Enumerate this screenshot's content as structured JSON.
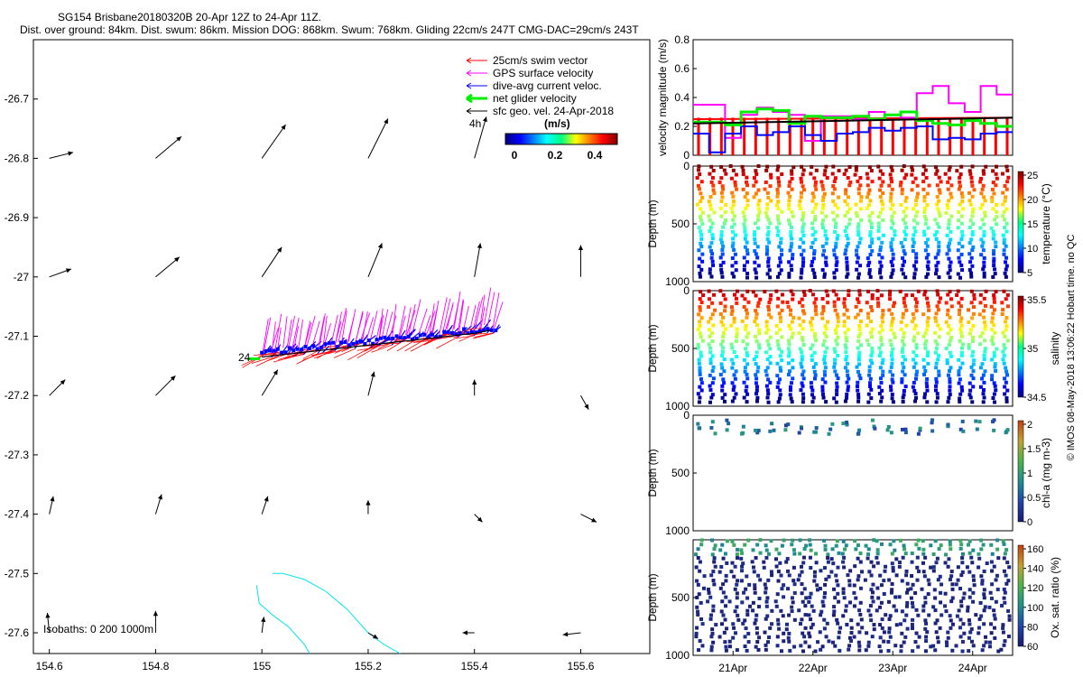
{
  "header": {
    "title": "SG154 Brisbane20180320B 20-Apr 12Z to 24-Apr 11Z.",
    "subtitle": "Dist. over ground: 84km. Dist. swum: 86km. Mission DOG: 868km. Swum: 768km. Gliding 22cm/s 247T CMG-DAC=29cm/s 243T"
  },
  "colors": {
    "swim": "#ff0000",
    "gps": "#ff00ff",
    "dac": "#0000ff",
    "net": "#00ee00",
    "geo": "#000000",
    "isobath": "#00e5ee"
  },
  "chart_data": [
    {
      "type": "vector-map",
      "title": "SG154 Brisbane20180320B 20-Apr 12Z to 24-Apr 11Z.",
      "xlim": [
        154.57,
        155.73
      ],
      "ylim": [
        -27.635,
        -26.6
      ],
      "xticks": [
        154.6,
        154.8,
        155,
        155.2,
        155.4,
        155.6
      ],
      "xtick_labels": [
        "154.6",
        "154.8",
        "155",
        "155.2",
        "155.4",
        "155.6"
      ],
      "yticks": [
        -26.7,
        -26.8,
        -26.9,
        -27,
        -27.1,
        -27.2,
        -27.3,
        -27.4,
        -27.5,
        -27.6
      ],
      "ytick_labels": [
        "-26.7",
        "-26.8",
        "-26.9",
        "-27",
        "-27.1",
        "-27.2",
        "-27.3",
        "-27.4",
        "-27.5",
        "-27.6"
      ],
      "legend": {
        "placement": "top-right",
        "items": [
          "25cm/s swim vector",
          "GPS surface velocity",
          "dive-avg current veloc.",
          "net glider velocity",
          "sfc geo. vel. 24-Apr-2018"
        ]
      },
      "colorbar": {
        "label": "(m/s)",
        "ticks": [
          "0",
          "0.2",
          "0.4"
        ],
        "range": [
          0,
          0.5
        ]
      },
      "scale_label": "4h",
      "start_label": "24",
      "isobath_label": "Isobaths: 0   200   1000m",
      "geo_vectors": [
        {
          "lon": 154.6,
          "lat": -26.8,
          "u": 0.12,
          "v": 0.03
        },
        {
          "lon": 154.8,
          "lat": -26.8,
          "u": 0.13,
          "v": 0.11
        },
        {
          "lon": 155.0,
          "lat": -26.8,
          "u": 0.12,
          "v": 0.17
        },
        {
          "lon": 155.2,
          "lat": -26.8,
          "u": 0.1,
          "v": 0.2
        },
        {
          "lon": 155.4,
          "lat": -26.8,
          "u": 0.06,
          "v": 0.21
        },
        {
          "lon": 154.6,
          "lat": -27.0,
          "u": 0.11,
          "v": 0.04
        },
        {
          "lon": 154.8,
          "lat": -27.0,
          "u": 0.12,
          "v": 0.1
        },
        {
          "lon": 155.0,
          "lat": -27.0,
          "u": 0.1,
          "v": 0.15
        },
        {
          "lon": 155.2,
          "lat": -27.0,
          "u": 0.07,
          "v": 0.17
        },
        {
          "lon": 155.4,
          "lat": -27.0,
          "u": 0.03,
          "v": 0.17
        },
        {
          "lon": 155.6,
          "lat": -27.0,
          "u": 0.0,
          "v": 0.16
        },
        {
          "lon": 154.6,
          "lat": -27.2,
          "u": 0.08,
          "v": 0.08
        },
        {
          "lon": 154.8,
          "lat": -27.2,
          "u": 0.1,
          "v": 0.1
        },
        {
          "lon": 155.0,
          "lat": -27.2,
          "u": 0.08,
          "v": 0.13
        },
        {
          "lon": 155.2,
          "lat": -27.2,
          "u": 0.03,
          "v": 0.12
        },
        {
          "lon": 155.4,
          "lat": -27.2,
          "u": 0.0,
          "v": 0.08
        },
        {
          "lon": 155.6,
          "lat": -27.2,
          "u": 0.04,
          "v": -0.07
        },
        {
          "lon": 154.6,
          "lat": -27.4,
          "u": 0.02,
          "v": 0.09
        },
        {
          "lon": 154.8,
          "lat": -27.4,
          "u": 0.03,
          "v": 0.1
        },
        {
          "lon": 155.0,
          "lat": -27.4,
          "u": 0.03,
          "v": 0.09
        },
        {
          "lon": 155.2,
          "lat": -27.4,
          "u": 0.0,
          "v": 0.07
        },
        {
          "lon": 155.4,
          "lat": -27.4,
          "u": 0.04,
          "v": -0.04
        },
        {
          "lon": 155.6,
          "lat": -27.4,
          "u": 0.08,
          "v": -0.04
        },
        {
          "lon": 154.6,
          "lat": -27.6,
          "u": -0.01,
          "v": 0.1
        },
        {
          "lon": 154.8,
          "lat": -27.6,
          "u": 0.0,
          "v": 0.11
        },
        {
          "lon": 155.0,
          "lat": -27.6,
          "u": 0.01,
          "v": 0.08
        },
        {
          "lon": 155.2,
          "lat": -27.6,
          "u": 0.05,
          "v": -0.03
        },
        {
          "lon": 155.4,
          "lat": -27.6,
          "u": -0.06,
          "v": 0.0
        },
        {
          "lon": 155.6,
          "lat": -27.6,
          "u": -0.09,
          "v": -0.01
        }
      ],
      "track": [
        {
          "lon": 155.0,
          "lat": -27.135
        },
        {
          "lon": 155.05,
          "lat": -27.13
        },
        {
          "lon": 155.1,
          "lat": -27.125
        },
        {
          "lon": 155.15,
          "lat": -27.12
        },
        {
          "lon": 155.2,
          "lat": -27.115
        },
        {
          "lon": 155.25,
          "lat": -27.11
        },
        {
          "lon": 155.3,
          "lat": -27.105
        },
        {
          "lon": 155.35,
          "lat": -27.1
        },
        {
          "lon": 155.4,
          "lat": -27.095
        },
        {
          "lon": 155.43,
          "lat": -27.09
        }
      ],
      "isobath_200": [
        {
          "lon": 155.02,
          "lat": -27.5
        },
        {
          "lon": 155.04,
          "lat": -27.5
        },
        {
          "lon": 155.08,
          "lat": -27.51
        },
        {
          "lon": 155.12,
          "lat": -27.53
        },
        {
          "lon": 155.16,
          "lat": -27.56
        },
        {
          "lon": 155.2,
          "lat": -27.6
        },
        {
          "lon": 155.23,
          "lat": -27.62
        },
        {
          "lon": 155.26,
          "lat": -27.635
        }
      ],
      "isobath_200b": [
        {
          "lon": 154.99,
          "lat": -27.52
        },
        {
          "lon": 154.995,
          "lat": -27.55
        },
        {
          "lon": 155.02,
          "lat": -27.57
        },
        {
          "lon": 155.05,
          "lat": -27.59
        },
        {
          "lon": 155.08,
          "lat": -27.62
        },
        {
          "lon": 155.09,
          "lat": -27.635
        }
      ]
    },
    {
      "type": "line",
      "ylabel": "velocity magnitude (m/s)",
      "ylim": [
        0,
        0.8
      ],
      "yticks": [
        0,
        0.2,
        0.4,
        0.6,
        0.8
      ],
      "ytick_labels": [
        "0",
        "0.2",
        "0.4",
        "0.6",
        "0.8"
      ],
      "xlim": [
        20.5,
        24.5
      ],
      "series": [
        {
          "name": "GPS surface velocity",
          "color": "#ff00ff",
          "step": true,
          "values": [
            0.35,
            0.35,
            0.12,
            0.28,
            0.33,
            0.3,
            0.28,
            0.1,
            0.27,
            0.27,
            0.25,
            0.3,
            0.28,
            0.26,
            0.43,
            0.48,
            0.36,
            0.3,
            0.48,
            0.42
          ]
        },
        {
          "name": "dive-avg current veloc.",
          "color": "#0000ff",
          "step": true,
          "values": [
            0.15,
            0.02,
            0.15,
            0.2,
            0.14,
            0.16,
            0.2,
            0.14,
            0.1,
            0.15,
            0.16,
            0.19,
            0.17,
            0.19,
            0.2,
            0.11,
            0.12,
            0.11,
            0.15,
            0.16
          ]
        },
        {
          "name": "net glider velocity",
          "color": "#00ee00",
          "step": true,
          "values": [
            0.23,
            0.23,
            0.21,
            0.3,
            0.32,
            0.31,
            0.22,
            0.27,
            0.26,
            0.26,
            0.27,
            0.25,
            0.28,
            0.3,
            0.24,
            0.22,
            0.21,
            0.24,
            0.22,
            0.2
          ]
        },
        {
          "name": "sfc geo. vel.",
          "color": "#000000",
          "step": false,
          "values": [
            0.22,
            0.26
          ]
        }
      ],
      "swim_spikes": {
        "color": "#ff0000",
        "count": 28,
        "top": 0.26
      }
    },
    {
      "type": "scatter",
      "ylabel": "Depth (m)",
      "colorbar_label": "temperature (°C)",
      "ylim": [
        1000,
        0
      ],
      "yticks": [
        0,
        500,
        1000
      ],
      "ytick_labels": [
        "0",
        "500",
        "1000"
      ],
      "colorbar_ticks": [
        "25",
        "20",
        "15",
        "10",
        "5"
      ],
      "cmin": 4,
      "cmax": 28,
      "dives": 28,
      "profile": "temperature"
    },
    {
      "type": "scatter",
      "ylabel": "Depth (m)",
      "colorbar_label": "salinity",
      "ylim": [
        1000,
        0
      ],
      "yticks": [
        0,
        500,
        1000
      ],
      "ytick_labels": [
        "0",
        "500",
        "1000"
      ],
      "colorbar_ticks": [
        "35.5",
        "35",
        "34.5"
      ],
      "cmin": 34.3,
      "cmax": 35.9,
      "dives": 28,
      "profile": "salinity"
    },
    {
      "type": "scatter",
      "ylabel": "Depth (m)",
      "colorbar_label": "chl-a (mg m-3)",
      "ylim": [
        1000,
        0
      ],
      "yticks": [
        0,
        500,
        1000
      ],
      "ytick_labels": [
        "0",
        "500",
        "1000"
      ],
      "colorbar_ticks": [
        "2",
        "1.5",
        "1",
        "0.5",
        "0"
      ],
      "cmin": 0,
      "cmax": 2,
      "profile": "chla"
    },
    {
      "type": "scatter",
      "ylabel": "Depth (m)",
      "colorbar_label": "Ox. sat. ratio (%)",
      "ylim": [
        1000,
        0
      ],
      "yticks": [
        500,
        1000
      ],
      "ytick_labels": [
        "500",
        "1000"
      ],
      "colorbar_ticks": [
        "160",
        "140",
        "120",
        "100",
        "80",
        "60"
      ],
      "cmin": 60,
      "cmax": 170,
      "dives": 28,
      "xticks": [
        21,
        22,
        23,
        24
      ],
      "xtick_labels": [
        "21Apr",
        "22Apr",
        "23Apr",
        "24Apr"
      ],
      "profile": "oxygen"
    }
  ],
  "credit": "© IMOS 08-May-2018 13:06:22 Hobart time. no QC"
}
